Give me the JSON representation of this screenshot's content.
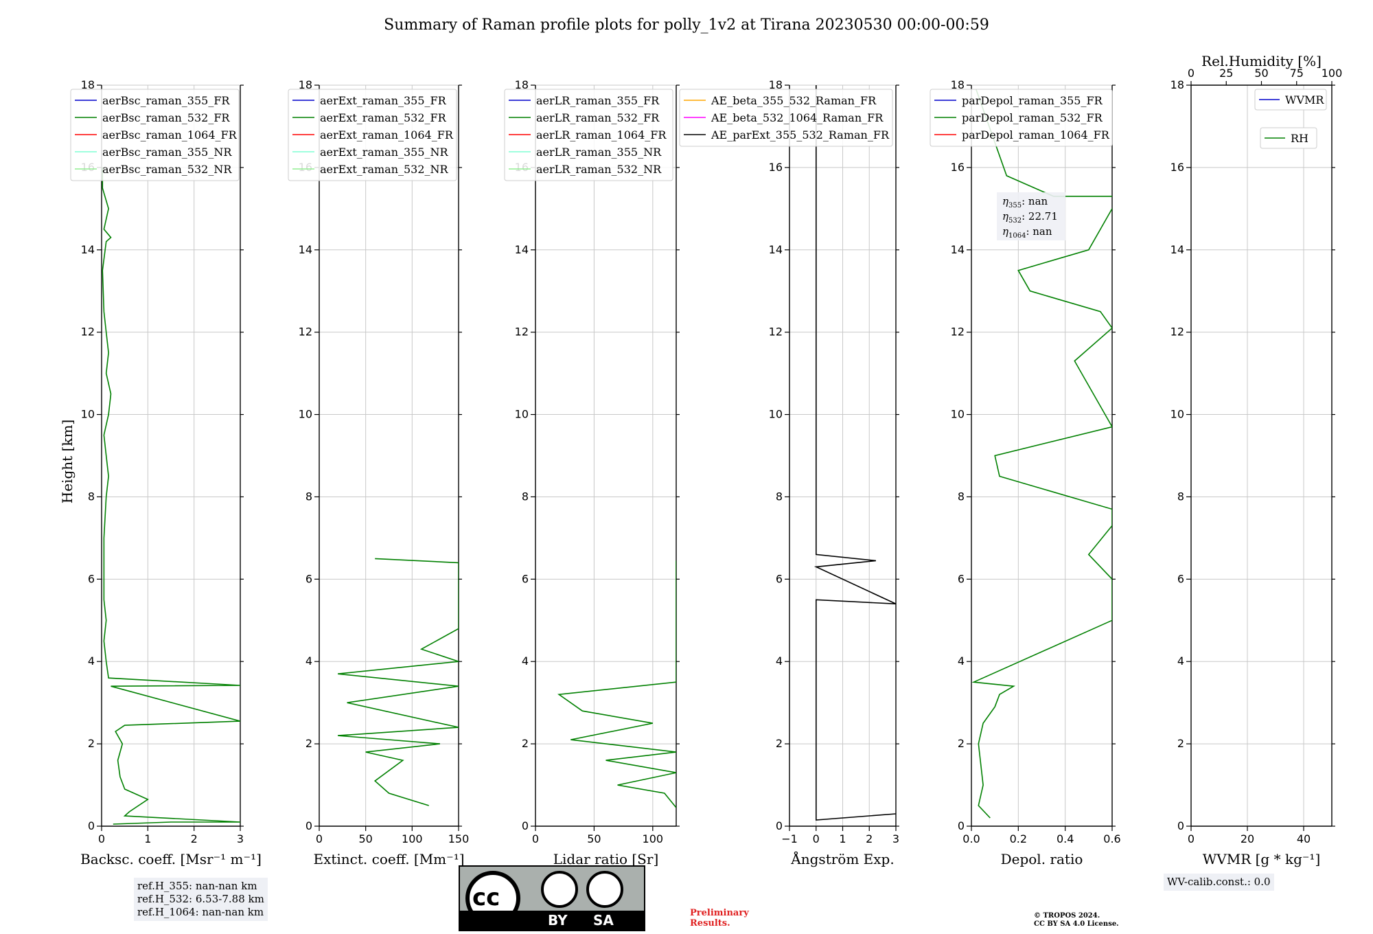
{
  "title": "Summary of Raman profile plots for polly_1v2 at Tirana 20230530 00:00-00:59",
  "ylabel": "Height [km]",
  "ylim": [
    0,
    18
  ],
  "yticks": [
    "0",
    "2",
    "4",
    "6",
    "8",
    "10",
    "12",
    "14",
    "16",
    "18"
  ],
  "panels": [
    {
      "id": "bsc",
      "xlabel": "Backsc. coeff. [Msr⁻¹ m⁻¹]",
      "xlim": [
        0,
        3
      ],
      "xticks": [
        "0",
        "1",
        "2",
        "3"
      ],
      "legend": [
        "aerBsc_raman_355_FR",
        "aerBsc_raman_532_FR",
        "aerBsc_raman_1064_FR",
        "aerBsc_raman_355_NR",
        "aerBsc_raman_532_NR"
      ],
      "colors": [
        "#0000cc",
        "#008000",
        "#ff0000",
        "#7fffd4",
        "#90ee90"
      ]
    },
    {
      "id": "ext",
      "xlabel": "Extinct. coeff. [Mm⁻¹]",
      "xlim": [
        0,
        150
      ],
      "xticks": [
        "0",
        "50",
        "100",
        "150"
      ],
      "legend": [
        "aerExt_raman_355_FR",
        "aerExt_raman_532_FR",
        "aerExt_raman_1064_FR",
        "aerExt_raman_355_NR",
        "aerExt_raman_532_NR"
      ],
      "colors": [
        "#0000cc",
        "#008000",
        "#ff0000",
        "#7fffd4",
        "#90ee90"
      ]
    },
    {
      "id": "lr",
      "xlabel": "Lidar ratio [Sr]",
      "xlim": [
        0,
        120
      ],
      "xticks": [
        "0",
        "50",
        "100"
      ],
      "legend": [
        "aerLR_raman_355_FR",
        "aerLR_raman_532_FR",
        "aerLR_raman_1064_FR",
        "aerLR_raman_355_NR",
        "aerLR_raman_532_NR"
      ],
      "colors": [
        "#0000cc",
        "#008000",
        "#ff0000",
        "#7fffd4",
        "#90ee90"
      ]
    },
    {
      "id": "ae",
      "xlabel": "Ångström Exp.",
      "xlim": [
        -1,
        3
      ],
      "xticks": [
        "−1",
        "0",
        "1",
        "2",
        "3"
      ],
      "legend": [
        "AE_beta_355_532_Raman_FR",
        "AE_beta_532_1064_Raman_FR",
        "AE_parExt_355_532_Raman_FR"
      ],
      "colors": [
        "#ffa500",
        "#ff00ff",
        "#000000"
      ]
    },
    {
      "id": "dep",
      "xlabel": "Depol. ratio",
      "xlim": [
        0,
        0.6
      ],
      "xticks": [
        "0.0",
        "0.2",
        "0.4",
        "0.6"
      ],
      "legend": [
        "parDepol_raman_355_FR",
        "parDepol_raman_532_FR",
        "parDepol_raman_1064_FR"
      ],
      "colors": [
        "#0000cc",
        "#008000",
        "#ff0000"
      ]
    },
    {
      "id": "wv",
      "xlabel": "WVMR [g * kg⁻¹]",
      "xlim": [
        0,
        50
      ],
      "xticks": [
        "0",
        "20",
        "40"
      ],
      "top_label": "Rel.Humidity [%]",
      "top_xlim": [
        0,
        100
      ],
      "top_xticks": [
        "0",
        "25",
        "50",
        "75",
        "100"
      ],
      "legend": [
        "WVMR",
        "RH"
      ],
      "colors": [
        "#0000cc",
        "#008000"
      ]
    }
  ],
  "eta_box": {
    "line1_sym": "η",
    "line1_sub": "355",
    "line1_val": ": nan",
    "line2_sym": "η",
    "line2_sub": "532",
    "line2_val": ": 22.71",
    "line3_sym": "η",
    "line3_sub": "1064",
    "line3_val": ": nan"
  },
  "refbox": "ref.H_355: nan-nan km\nref.H_532: 6.53-7.88 km\nref.H_1064: nan-nan km",
  "wvbox": "WV-calib.const.: 0.0",
  "preliminary": "Preliminary\nResults.",
  "copyright": "© TROPOS 2024.\nCC BY SA 4.0 License.",
  "license_badge": {
    "left": "BY",
    "right": "SA"
  },
  "chart_data": {
    "type": "line",
    "note_units": "heights in km, x in panel data units",
    "bsc_532": [
      [
        0.25,
        0.05
      ],
      [
        1.5,
        0.1
      ],
      [
        3,
        0.1
      ],
      [
        0.5,
        0.25
      ],
      [
        0.6,
        0.35
      ],
      [
        1.0,
        0.65
      ],
      [
        0.5,
        0.9
      ],
      [
        0.4,
        1.2
      ],
      [
        0.35,
        1.6
      ],
      [
        0.45,
        2.0
      ],
      [
        0.3,
        2.3
      ],
      [
        0.5,
        2.45
      ],
      [
        3,
        2.55
      ],
      [
        0.2,
        3.4
      ],
      [
        3,
        3.42
      ],
      [
        0.15,
        3.6
      ],
      [
        0.1,
        4.0
      ],
      [
        0.05,
        4.5
      ],
      [
        0.1,
        5.0
      ],
      [
        0.05,
        5.5
      ],
      [
        0.05,
        6.0
      ],
      [
        0.05,
        7.0
      ],
      [
        0.1,
        8.0
      ],
      [
        0.15,
        8.5
      ],
      [
        0.1,
        9.0
      ],
      [
        0.05,
        9.5
      ],
      [
        0.15,
        10.0
      ],
      [
        0.2,
        10.5
      ],
      [
        0.1,
        11.0
      ],
      [
        0.15,
        11.5
      ],
      [
        0.1,
        12.0
      ],
      [
        0.05,
        12.5
      ],
      [
        0.02,
        13.5
      ],
      [
        0.1,
        14.2
      ],
      [
        0.2,
        14.3
      ],
      [
        0.05,
        14.5
      ],
      [
        0.15,
        15.0
      ],
      [
        0.02,
        15.5
      ],
      [
        0.02,
        16.0
      ]
    ],
    "ext_532": [
      [
        118,
        0.5
      ],
      [
        75,
        0.8
      ],
      [
        60,
        1.1
      ],
      [
        90,
        1.6
      ],
      [
        50,
        1.8
      ],
      [
        130,
        2.0
      ],
      [
        20,
        2.2
      ],
      [
        150,
        2.4
      ],
      [
        30,
        3.0
      ],
      [
        150,
        3.4
      ],
      [
        20,
        3.7
      ],
      [
        150,
        4.0
      ],
      [
        110,
        4.3
      ],
      [
        150,
        4.8
      ],
      [
        150,
        5.2
      ],
      [
        150,
        6.4
      ],
      [
        60,
        6.5
      ]
    ],
    "lr_532": [
      [
        120,
        0.45
      ],
      [
        110,
        0.8
      ],
      [
        70,
        1.0
      ],
      [
        120,
        1.3
      ],
      [
        60,
        1.6
      ],
      [
        120,
        1.8
      ],
      [
        30,
        2.1
      ],
      [
        100,
        2.5
      ],
      [
        40,
        2.8
      ],
      [
        20,
        3.2
      ],
      [
        120,
        3.5
      ],
      [
        120,
        4.0
      ],
      [
        120,
        4.5
      ],
      [
        120,
        5.0
      ],
      [
        120,
        5.4
      ],
      [
        120,
        6.45
      ]
    ],
    "ae_parExt_355_532": [
      [
        3,
        0.3
      ],
      [
        0,
        0.15
      ],
      [
        0,
        5.5
      ],
      [
        3,
        5.4
      ],
      [
        0,
        6.3
      ],
      [
        2.25,
        6.45
      ],
      [
        0,
        6.6
      ],
      [
        0,
        18
      ]
    ],
    "pardepol_532": [
      [
        0.08,
        0.2
      ],
      [
        0.03,
        0.5
      ],
      [
        0.05,
        1.0
      ],
      [
        0.03,
        2.0
      ],
      [
        0.05,
        2.5
      ],
      [
        0.1,
        2.9
      ],
      [
        0.12,
        3.2
      ],
      [
        0.18,
        3.4
      ],
      [
        0.01,
        3.5
      ],
      [
        0.6,
        5.0
      ],
      [
        0.6,
        6.0
      ],
      [
        0.5,
        6.6
      ],
      [
        0.6,
        7.3
      ],
      [
        0.6,
        7.7
      ],
      [
        0.12,
        8.5
      ],
      [
        0.1,
        9.0
      ],
      [
        0.6,
        9.7
      ],
      [
        0.44,
        11.3
      ],
      [
        0.6,
        12.1
      ],
      [
        0.55,
        12.5
      ],
      [
        0.25,
        13.0
      ],
      [
        0.2,
        13.5
      ],
      [
        0.5,
        14.0
      ],
      [
        0.6,
        15.0
      ],
      [
        0.8,
        15.3
      ],
      [
        0.35,
        15.3
      ],
      [
        0.15,
        15.8
      ],
      [
        0.02,
        17.9
      ]
    ],
    "wvmr": [],
    "rh": []
  }
}
